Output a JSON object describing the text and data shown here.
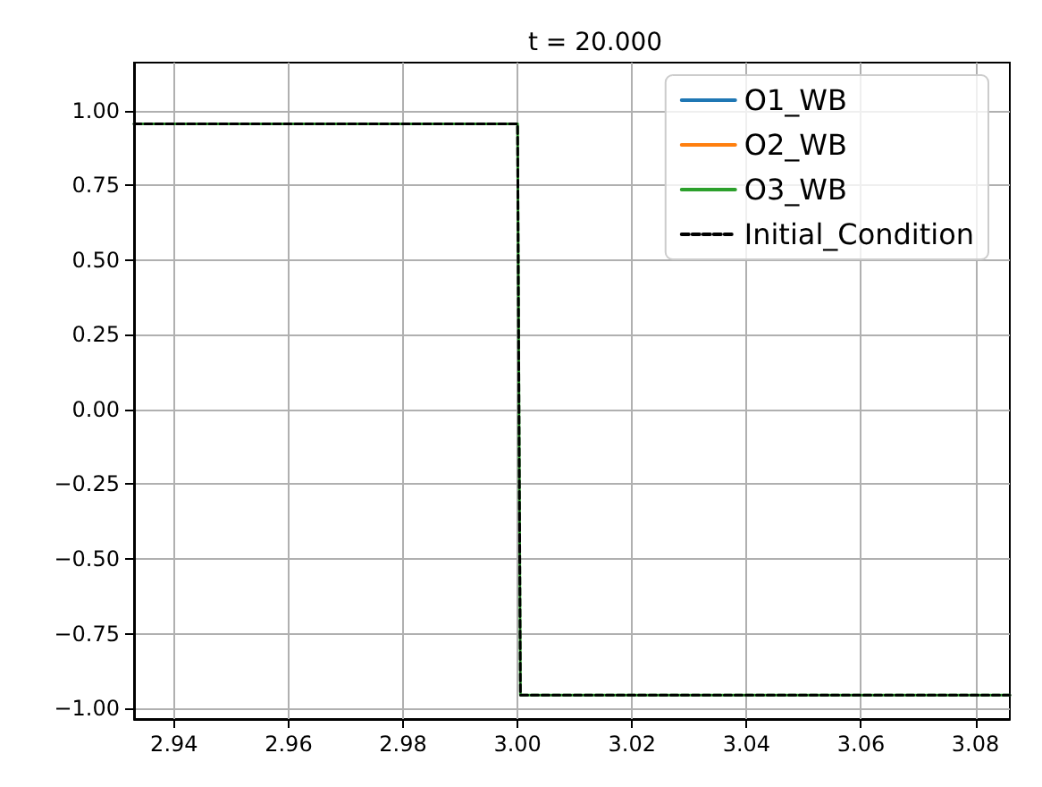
{
  "chart_data": {
    "type": "line",
    "title": "t = 20.000",
    "series": [
      {
        "name": "O1_WB",
        "color": "#1f77b4",
        "line_style": "solid"
      },
      {
        "name": "O2_WB",
        "color": "#ff7f0e",
        "line_style": "solid"
      },
      {
        "name": "O3_WB",
        "color": "#2ca02c",
        "line_style": "solid",
        "x": [
          2.933,
          3.0,
          3.0005,
          3.086
        ],
        "values": [
          0.955,
          0.955,
          -0.955,
          -0.955
        ]
      },
      {
        "name": "Initial_Condition",
        "color": "#000000",
        "line_style": "dashed",
        "x": [
          2.933,
          3.0,
          3.0005,
          3.086
        ],
        "values": [
          0.955,
          0.955,
          -0.955,
          -0.955
        ]
      }
    ],
    "xlim": [
      2.933,
      3.086
    ],
    "xticks": [
      {
        "value": 2.94,
        "label": "2.94"
      },
      {
        "value": 2.96,
        "label": "2.96"
      },
      {
        "value": 2.98,
        "label": "2.98"
      },
      {
        "value": 3.0,
        "label": "3.00"
      },
      {
        "value": 3.02,
        "label": "3.02"
      },
      {
        "value": 3.04,
        "label": "3.04"
      },
      {
        "value": 3.06,
        "label": "3.06"
      },
      {
        "value": 3.08,
        "label": "3.08"
      }
    ],
    "ylim": [
      -1.035,
      1.16
    ],
    "yticks": [
      {
        "value": -1.0,
        "label": "−1.00"
      },
      {
        "value": -0.75,
        "label": "−0.75"
      },
      {
        "value": -0.5,
        "label": "−0.50"
      },
      {
        "value": -0.25,
        "label": "−0.25"
      },
      {
        "value": 0,
        "label": "0.00"
      },
      {
        "value": 0.25,
        "label": "0.25"
      },
      {
        "value": 0.5,
        "label": "0.50"
      },
      {
        "value": 0.75,
        "label": "0.75"
      },
      {
        "value": 1.0,
        "label": "1.00"
      }
    ],
    "grid": true,
    "legend": "top right"
  }
}
